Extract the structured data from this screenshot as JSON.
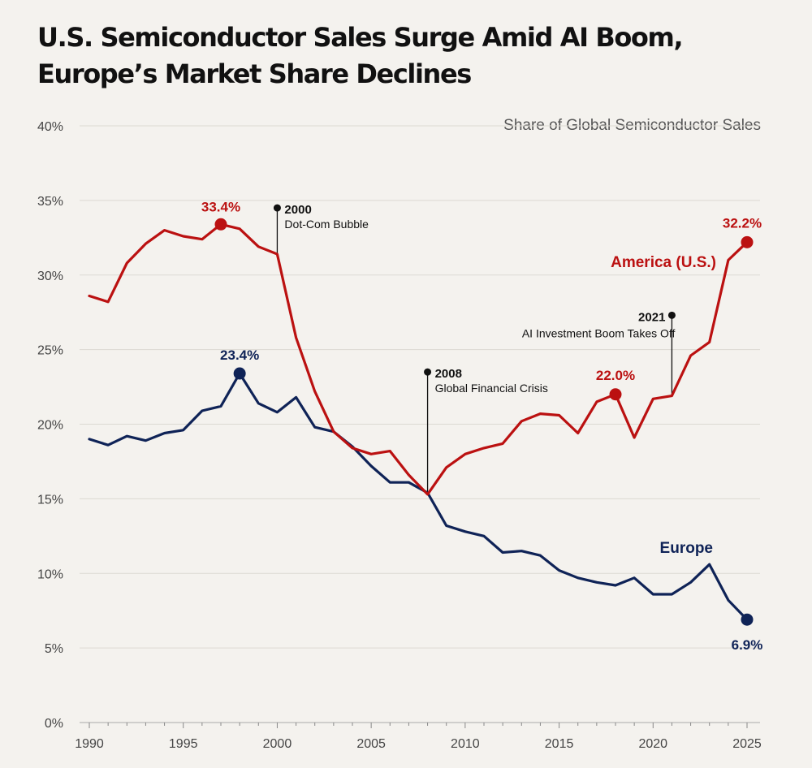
{
  "title_lines": [
    "U.S. Semiconductor Sales Surge Amid AI Boom,",
    "Europe’s Market Share Declines"
  ],
  "colors": {
    "america": "#bb1111",
    "europe": "#0f2357",
    "annotation": "#111111"
  },
  "chart_data": {
    "type": "line",
    "subtitle": "Share of Global Semiconductor Sales",
    "xlim": [
      1990,
      2025
    ],
    "ylim": [
      0,
      40
    ],
    "x_ticks": [
      "1990",
      "1995",
      "2000",
      "2005",
      "2010",
      "2015",
      "2020",
      "2025"
    ],
    "y_ticks": [
      "0%",
      "5%",
      "10%",
      "15%",
      "20%",
      "25%",
      "30%",
      "35%",
      "40%"
    ],
    "grid": true,
    "x": [
      1990,
      1991,
      1992,
      1993,
      1994,
      1995,
      1996,
      1997,
      1998,
      1999,
      2000,
      2001,
      2002,
      2003,
      2004,
      2005,
      2006,
      2007,
      2008,
      2009,
      2010,
      2011,
      2012,
      2013,
      2014,
      2015,
      2016,
      2017,
      2018,
      2019,
      2020,
      2021,
      2022,
      2023,
      2024,
      2025
    ],
    "series": [
      {
        "name": "America (U.S.)",
        "key": "america",
        "values": [
          28.6,
          28.2,
          30.8,
          32.1,
          33.0,
          32.6,
          32.4,
          33.4,
          33.1,
          31.9,
          31.4,
          25.8,
          22.2,
          19.5,
          18.4,
          18.0,
          18.2,
          16.6,
          15.3,
          17.1,
          18.0,
          18.4,
          18.7,
          20.2,
          20.7,
          20.6,
          19.4,
          21.5,
          22.0,
          19.1,
          21.7,
          21.9,
          24.6,
          25.5,
          31.0,
          32.2
        ],
        "highlights": [
          {
            "x": 1997,
            "y": 33.4,
            "label": "33.4%"
          },
          {
            "x": 2018,
            "y": 22.0,
            "label": "22.0%"
          },
          {
            "x": 2025,
            "y": 32.2,
            "label": "32.2%"
          }
        ]
      },
      {
        "name": "Europe",
        "key": "europe",
        "values": [
          19.0,
          18.6,
          19.2,
          18.9,
          19.4,
          19.6,
          20.9,
          21.2,
          23.4,
          21.4,
          20.8,
          21.8,
          19.8,
          19.5,
          18.5,
          17.2,
          16.1,
          16.1,
          15.4,
          13.2,
          12.8,
          12.5,
          11.4,
          11.5,
          11.2,
          10.2,
          9.7,
          9.4,
          9.2,
          9.7,
          8.6,
          8.6,
          9.4,
          10.6,
          8.2,
          6.9
        ],
        "highlights": [
          {
            "x": 1998,
            "y": 23.4,
            "label": "23.4%"
          },
          {
            "x": 2025,
            "y": 6.9,
            "label": "6.9%"
          }
        ]
      }
    ],
    "annotations": [
      {
        "x": 2000,
        "y_top": 34.5,
        "y_base": 31.4,
        "year": "2000",
        "text": "Dot-Com Bubble"
      },
      {
        "x": 2008,
        "y_top": 23.5,
        "y_base": 15.4,
        "year": "2008",
        "text": "Global Financial Crisis"
      },
      {
        "x": 2021,
        "y_top": 27.3,
        "y_base": 21.9,
        "year": "2021",
        "text": "AI Investment Boom Takes Off"
      }
    ]
  }
}
